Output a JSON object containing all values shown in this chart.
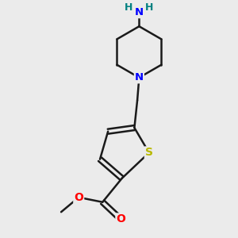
{
  "background_color": "#ebebeb",
  "bond_color": "#1a1a1a",
  "N_color": "#0000ff",
  "S_color": "#b8b800",
  "O_color": "#ff0000",
  "H_color": "#008080",
  "line_width": 1.8,
  "figsize": [
    3.0,
    3.0
  ],
  "dpi": 100,
  "xlim": [
    -2.8,
    2.8
  ],
  "ylim": [
    -3.2,
    3.2
  ]
}
